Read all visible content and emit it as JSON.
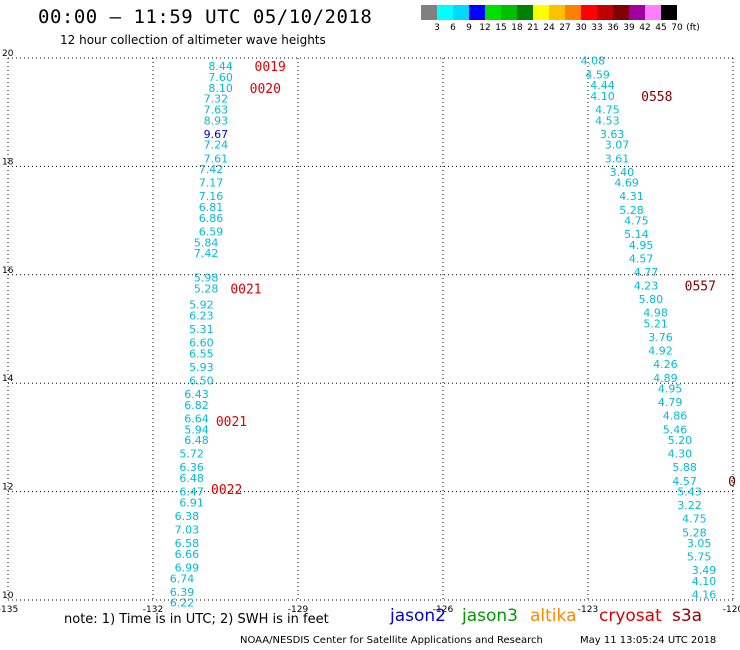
{
  "title": "00:00 — 11:59 UTC 05/10/2018",
  "subtitle": "12 hour collection of altimeter wave heights",
  "colorbar": {
    "colors": [
      "#808080",
      "#00ffff",
      "#00d8ff",
      "#0000ff",
      "#00e000",
      "#00c000",
      "#008000",
      "#ffff00",
      "#ffc000",
      "#ff8000",
      "#ff0000",
      "#c00000",
      "#800000",
      "#a000a0",
      "#ff80ff",
      "#000000"
    ],
    "labels": [
      "3",
      "6",
      "9",
      "12",
      "15",
      "18",
      "21",
      "24",
      "27",
      "30",
      "33",
      "36",
      "39",
      "42",
      "45",
      "70",
      "(ft)"
    ]
  },
  "footer": {
    "note": "note:  1) Time is in UTC;  2) SWH is in feet",
    "satellites": [
      {
        "name": "jason2",
        "color": "#0000dd"
      },
      {
        "name": "jason3",
        "color": "#009900"
      },
      {
        "name": "altika",
        "color": "#ff8800"
      },
      {
        "name": "cryosat",
        "color": "#dd0000"
      },
      {
        "name": "s3a",
        "color": "#990000"
      }
    ],
    "credit": "NOAA/NESDIS Center for Satellite Applications and Research",
    "timestamp": "May 11 13:05:24 UTC 2018"
  },
  "chart_data": {
    "type": "scatter",
    "xlim": [
      -135,
      -120
    ],
    "ylim": [
      10,
      20
    ],
    "x_ticks": [
      "-135",
      "-132",
      "-129",
      "-126",
      "-123",
      "-120"
    ],
    "y_ticks": [
      "10",
      "12",
      "14",
      "16",
      "18",
      "20"
    ],
    "grid": true,
    "tracks": [
      {
        "name": "track-west",
        "color": "#00bcd8",
        "points": [
          {
            "lon": -130.6,
            "lat": 19.85,
            "v": "8.44"
          },
          {
            "lon": -130.6,
            "lat": 19.65,
            "v": "7.60"
          },
          {
            "lon": -130.6,
            "lat": 19.45,
            "v": "8.10"
          },
          {
            "lon": -130.7,
            "lat": 19.25,
            "v": "7.32"
          },
          {
            "lon": -130.7,
            "lat": 19.05,
            "v": "7.63"
          },
          {
            "lon": -130.7,
            "lat": 18.85,
            "v": "8.93"
          },
          {
            "lon": -130.7,
            "lat": 18.6,
            "v": "9.67",
            "color": "#0000cc"
          },
          {
            "lon": -130.7,
            "lat": 18.4,
            "v": "7.24"
          },
          {
            "lon": -130.7,
            "lat": 18.15,
            "v": "7.61"
          },
          {
            "lon": -130.8,
            "lat": 17.95,
            "v": "7.42"
          },
          {
            "lon": -130.8,
            "lat": 17.7,
            "v": "7.17"
          },
          {
            "lon": -130.8,
            "lat": 17.45,
            "v": "7.16"
          },
          {
            "lon": -130.8,
            "lat": 17.25,
            "v": "6.81"
          },
          {
            "lon": -130.8,
            "lat": 17.05,
            "v": "6.86"
          },
          {
            "lon": -130.8,
            "lat": 16.8,
            "v": "6.59"
          },
          {
            "lon": -130.9,
            "lat": 16.6,
            "v": "5.84"
          },
          {
            "lon": -130.9,
            "lat": 16.4,
            "v": "7.42"
          },
          {
            "lon": -130.9,
            "lat": 15.95,
            "v": "5.98"
          },
          {
            "lon": -130.9,
            "lat": 15.75,
            "v": "5.28"
          },
          {
            "lon": -131.0,
            "lat": 15.45,
            "v": "5.92"
          },
          {
            "lon": -131.0,
            "lat": 15.25,
            "v": "6.23"
          },
          {
            "lon": -131.0,
            "lat": 15.0,
            "v": "5.31"
          },
          {
            "lon": -131.0,
            "lat": 14.75,
            "v": "6.60"
          },
          {
            "lon": -131.0,
            "lat": 14.55,
            "v": "6.55"
          },
          {
            "lon": -131.0,
            "lat": 14.3,
            "v": "5.93"
          },
          {
            "lon": -131.0,
            "lat": 14.05,
            "v": "6.50"
          },
          {
            "lon": -131.1,
            "lat": 13.8,
            "v": "6.43"
          },
          {
            "lon": -131.1,
            "lat": 13.6,
            "v": "6.82"
          },
          {
            "lon": -131.1,
            "lat": 13.35,
            "v": "6.64"
          },
          {
            "lon": -131.1,
            "lat": 13.15,
            "v": "5.94"
          },
          {
            "lon": -131.1,
            "lat": 12.95,
            "v": "6.48"
          },
          {
            "lon": -131.2,
            "lat": 12.7,
            "v": "5.72"
          },
          {
            "lon": -131.2,
            "lat": 12.45,
            "v": "6.36"
          },
          {
            "lon": -131.2,
            "lat": 12.25,
            "v": "6.48"
          },
          {
            "lon": -131.2,
            "lat": 12.0,
            "v": "6.47"
          },
          {
            "lon": -131.2,
            "lat": 11.8,
            "v": "6.91"
          },
          {
            "lon": -131.3,
            "lat": 11.55,
            "v": "6.38"
          },
          {
            "lon": -131.3,
            "lat": 11.3,
            "v": "7.03"
          },
          {
            "lon": -131.3,
            "lat": 11.05,
            "v": "6.58"
          },
          {
            "lon": -131.3,
            "lat": 10.85,
            "v": "6.66"
          },
          {
            "lon": -131.3,
            "lat": 10.6,
            "v": "6.99"
          },
          {
            "lon": -131.4,
            "lat": 10.4,
            "v": "6.74"
          },
          {
            "lon": -131.4,
            "lat": 10.15,
            "v": "6.39"
          },
          {
            "lon": -131.4,
            "lat": 9.95,
            "v": "6.22"
          }
        ]
      },
      {
        "name": "track-east",
        "color": "#00bcd8",
        "points": [
          {
            "lon": -122.9,
            "lat": 19.95,
            "v": "4.08"
          },
          {
            "lon": -122.8,
            "lat": 19.7,
            "v": "4.59"
          },
          {
            "lon": -122.7,
            "lat": 19.5,
            "v": "4.44"
          },
          {
            "lon": -122.7,
            "lat": 19.3,
            "v": "4.10"
          },
          {
            "lon": -122.6,
            "lat": 19.05,
            "v": "4.75"
          },
          {
            "lon": -122.6,
            "lat": 18.85,
            "v": "4.53"
          },
          {
            "lon": -122.5,
            "lat": 18.6,
            "v": "3.63"
          },
          {
            "lon": -122.4,
            "lat": 18.4,
            "v": "3.07"
          },
          {
            "lon": -122.4,
            "lat": 18.15,
            "v": "3.61"
          },
          {
            "lon": -122.3,
            "lat": 17.9,
            "v": "3.40"
          },
          {
            "lon": -122.2,
            "lat": 17.7,
            "v": "4.69"
          },
          {
            "lon": -122.1,
            "lat": 17.45,
            "v": "4.31"
          },
          {
            "lon": -122.1,
            "lat": 17.2,
            "v": "5.28"
          },
          {
            "lon": -122.0,
            "lat": 17.0,
            "v": "4.75"
          },
          {
            "lon": -122.0,
            "lat": 16.75,
            "v": "5.14"
          },
          {
            "lon": -121.9,
            "lat": 16.55,
            "v": "4.95"
          },
          {
            "lon": -121.9,
            "lat": 16.3,
            "v": "4.57"
          },
          {
            "lon": -121.8,
            "lat": 16.05,
            "v": "4.77"
          },
          {
            "lon": -121.8,
            "lat": 15.8,
            "v": "4.23"
          },
          {
            "lon": -121.7,
            "lat": 15.55,
            "v": "5.80"
          },
          {
            "lon": -121.6,
            "lat": 15.3,
            "v": "4.98"
          },
          {
            "lon": -121.6,
            "lat": 15.1,
            "v": "5.21"
          },
          {
            "lon": -121.5,
            "lat": 14.85,
            "v": "3.76"
          },
          {
            "lon": -121.5,
            "lat": 14.6,
            "v": "4.92"
          },
          {
            "lon": -121.4,
            "lat": 14.35,
            "v": "4.26"
          },
          {
            "lon": -121.4,
            "lat": 14.1,
            "v": "4.89"
          },
          {
            "lon": -121.3,
            "lat": 13.9,
            "v": "4.95"
          },
          {
            "lon": -121.3,
            "lat": 13.65,
            "v": "4.79"
          },
          {
            "lon": -121.2,
            "lat": 13.4,
            "v": "4.86"
          },
          {
            "lon": -121.2,
            "lat": 13.15,
            "v": "5.46"
          },
          {
            "lon": -121.1,
            "lat": 12.95,
            "v": "5.20"
          },
          {
            "lon": -121.1,
            "lat": 12.7,
            "v": "4.30"
          },
          {
            "lon": -121.0,
            "lat": 12.45,
            "v": "5.88"
          },
          {
            "lon": -121.0,
            "lat": 12.2,
            "v": "4.57"
          },
          {
            "lon": -120.9,
            "lat": 12.0,
            "v": "5.43"
          },
          {
            "lon": -120.9,
            "lat": 11.75,
            "v": "3.22"
          },
          {
            "lon": -120.8,
            "lat": 11.5,
            "v": "4.75"
          },
          {
            "lon": -120.8,
            "lat": 11.25,
            "v": "5.28"
          },
          {
            "lon": -120.7,
            "lat": 11.05,
            "v": "3.05"
          },
          {
            "lon": -120.7,
            "lat": 10.8,
            "v": "5.75"
          },
          {
            "lon": -120.6,
            "lat": 10.55,
            "v": "3.49"
          },
          {
            "lon": -120.6,
            "lat": 10.35,
            "v": "4.10"
          },
          {
            "lon": -120.6,
            "lat": 10.1,
            "v": "4.16"
          }
        ]
      }
    ],
    "time_labels": [
      {
        "lon": -129.9,
        "lat": 19.85,
        "text": "0019",
        "color": "#dd0000"
      },
      {
        "lon": -130.0,
        "lat": 19.45,
        "text": "0020",
        "color": "#dd0000"
      },
      {
        "lon": -130.4,
        "lat": 15.75,
        "text": "0021",
        "color": "#dd0000"
      },
      {
        "lon": -130.7,
        "lat": 13.3,
        "text": "0021",
        "color": "#dd0000"
      },
      {
        "lon": -130.8,
        "lat": 12.05,
        "text": "0022",
        "color": "#dd0000"
      },
      {
        "lon": -121.9,
        "lat": 19.3,
        "text": "0558",
        "color": "#800000"
      },
      {
        "lon": -121.0,
        "lat": 15.8,
        "text": "0557",
        "color": "#800000"
      },
      {
        "lon": -120.1,
        "lat": 12.2,
        "text": "0",
        "color": "#800000"
      }
    ]
  }
}
